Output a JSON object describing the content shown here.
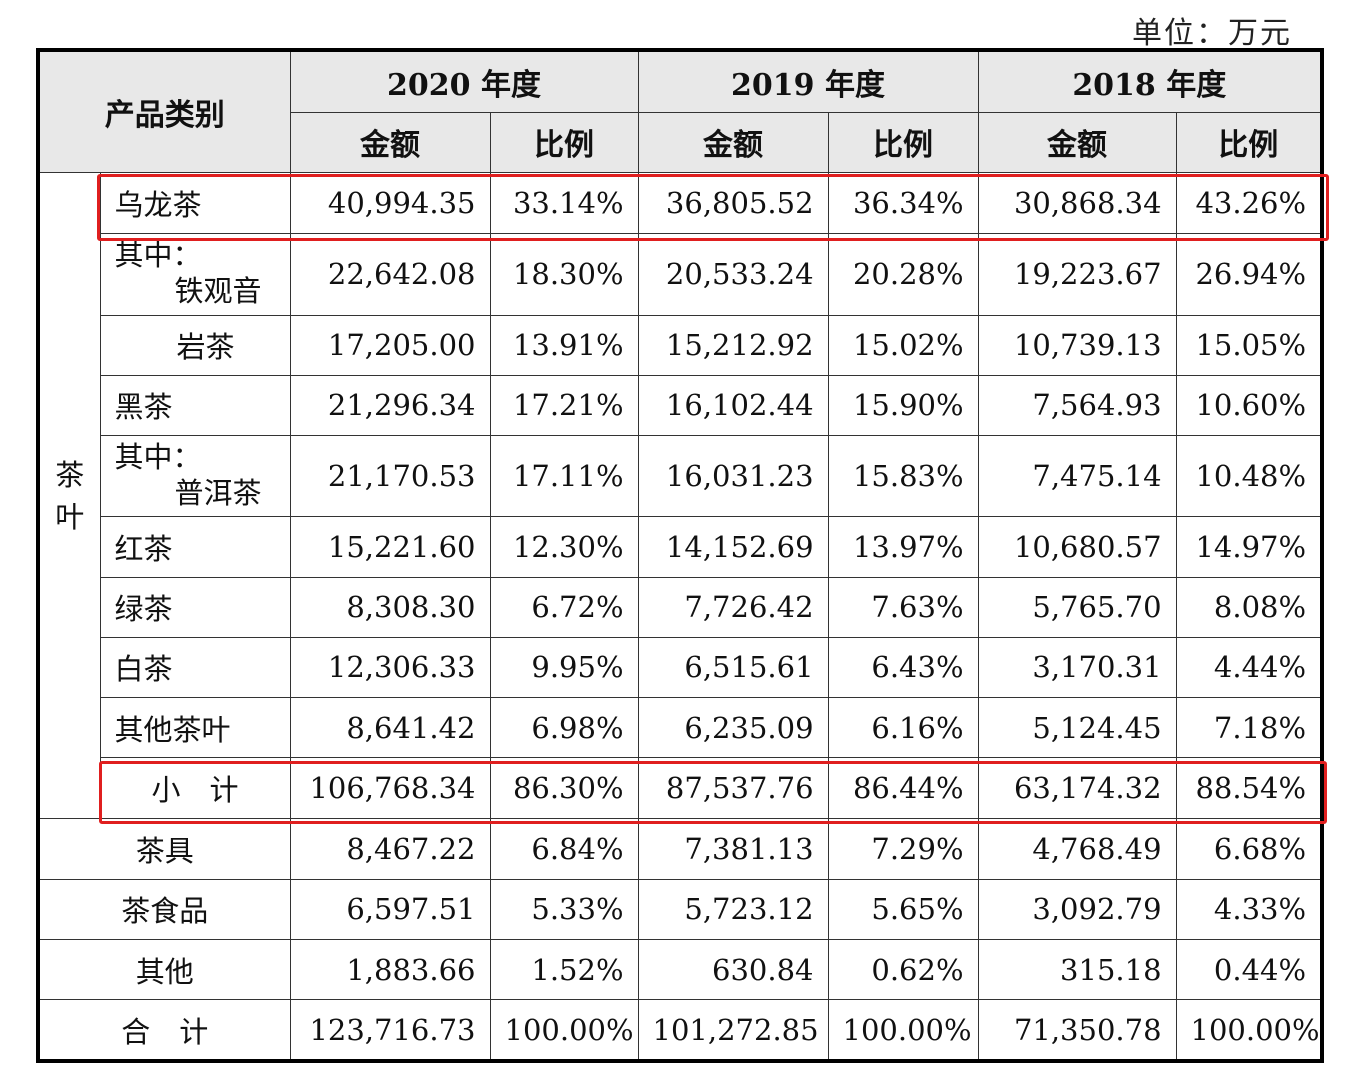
{
  "unit": "单位：万元",
  "header": {
    "category": "产品类别",
    "years": [
      "2020 年度",
      "2019 年度",
      "2018 年度"
    ],
    "amount": "金额",
    "ratio": "比例"
  },
  "tea_group_label": [
    "茶",
    "叶"
  ],
  "rows": {
    "oolong": {
      "label": "乌龙茶",
      "values": [
        "40,994.35",
        "33.14%",
        "36,805.52",
        "36.34%",
        "30,868.34",
        "43.26%"
      ]
    },
    "tieguanyin": {
      "label1": "其中：",
      "label2": "铁观音",
      "values": [
        "22,642.08",
        "18.30%",
        "20,533.24",
        "20.28%",
        "19,223.67",
        "26.94%"
      ]
    },
    "yancha": {
      "label": "岩茶",
      "values": [
        "17,205.00",
        "13.91%",
        "15,212.92",
        "15.02%",
        "10,739.13",
        "15.05%"
      ]
    },
    "heicha": {
      "label": "黑茶",
      "values": [
        "21,296.34",
        "17.21%",
        "16,102.44",
        "15.90%",
        "7,564.93",
        "10.60%"
      ]
    },
    "puer": {
      "label1": "其中：",
      "label2": "普洱茶",
      "values": [
        "21,170.53",
        "17.11%",
        "16,031.23",
        "15.83%",
        "7,475.14",
        "10.48%"
      ]
    },
    "hongcha": {
      "label": "红茶",
      "values": [
        "15,221.60",
        "12.30%",
        "14,152.69",
        "13.97%",
        "10,680.57",
        "14.97%"
      ]
    },
    "lvcha": {
      "label": "绿茶",
      "values": [
        "8,308.30",
        "6.72%",
        "7,726.42",
        "7.63%",
        "5,765.70",
        "8.08%"
      ]
    },
    "baicha": {
      "label": "白茶",
      "values": [
        "12,306.33",
        "9.95%",
        "6,515.61",
        "6.43%",
        "3,170.31",
        "4.44%"
      ]
    },
    "other_tea": {
      "label": "其他茶叶",
      "values": [
        "8,641.42",
        "6.98%",
        "6,235.09",
        "6.16%",
        "5,124.45",
        "7.18%"
      ]
    },
    "subtotal": {
      "label": "小　计",
      "values": [
        "106,768.34",
        "86.30%",
        "87,537.76",
        "86.44%",
        "63,174.32",
        "88.54%"
      ]
    },
    "teaware": {
      "label": "茶具",
      "values": [
        "8,467.22",
        "6.84%",
        "7,381.13",
        "7.29%",
        "4,768.49",
        "6.68%"
      ]
    },
    "tea_food": {
      "label": "茶食品",
      "values": [
        "6,597.51",
        "5.33%",
        "5,723.12",
        "5.65%",
        "3,092.79",
        "4.33%"
      ]
    },
    "others": {
      "label": "其他",
      "values": [
        "1,883.66",
        "1.52%",
        "630.84",
        "0.62%",
        "315.18",
        "0.44%"
      ]
    },
    "total": {
      "label": "合　计",
      "values": [
        "123,716.73",
        "100.00%",
        "101,272.85",
        "100.00%",
        "71,350.78",
        "100.00%"
      ]
    }
  },
  "highlight_color": "#e01f1f"
}
